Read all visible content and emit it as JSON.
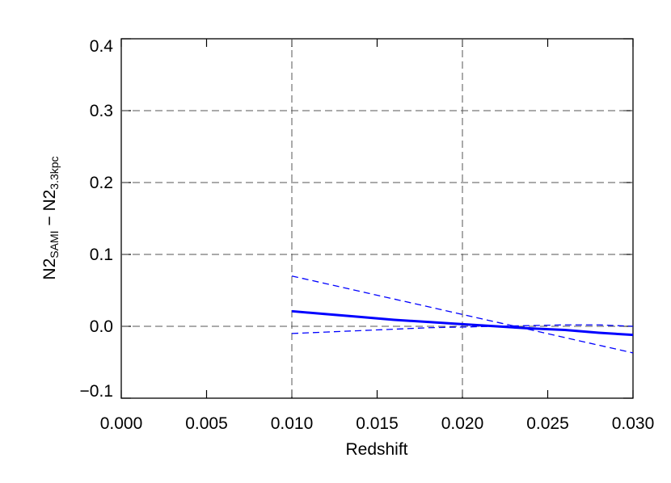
{
  "chart_data": {
    "type": "line",
    "x_label": "Redshift",
    "y_label": [
      {
        "text": "N2"
      },
      {
        "text": "SAMI",
        "sub": true
      },
      {
        "text": " − "
      },
      {
        "text": "N2"
      },
      {
        "text": "3.3kpc",
        "sub": true
      }
    ],
    "x": [
      0.01,
      0.012,
      0.014,
      0.016,
      0.018,
      0.02,
      0.022,
      0.024,
      0.026,
      0.028,
      0.03
    ],
    "series": [
      {
        "color": "#0000ff",
        "dash": false,
        "width": 3,
        "values": [
          0.021,
          0.017,
          0.013,
          0.009,
          0.006,
          0.003,
          0.0,
          -0.003,
          -0.005,
          -0.009,
          -0.012
        ]
      },
      {
        "color": "#0000ff",
        "dash": true,
        "width": 1.3,
        "values": [
          0.07,
          0.0593,
          0.0486,
          0.0379,
          0.0272,
          0.0165,
          0.0058,
          -0.0049,
          -0.0156,
          -0.0263,
          -0.037
        ]
      },
      {
        "color": "#0000ff",
        "dash": true,
        "width": 1.3,
        "values": [
          -0.01,
          -0.008,
          -0.006,
          -0.004,
          -0.002,
          -0.001,
          0.0,
          0.001,
          0.002,
          0.002,
          0.0
        ]
      }
    ],
    "xlim": [
      0,
      0.03
    ],
    "ylim": [
      -0.1,
      0.4
    ],
    "xticks": [
      {
        "value": 0,
        "label": "0.000"
      },
      {
        "value": 0.005,
        "label": "0.005"
      },
      {
        "value": 0.01,
        "label": "0.010"
      },
      {
        "value": 0.015,
        "label": "0.015"
      },
      {
        "value": 0.02,
        "label": "0.020"
      },
      {
        "value": 0.025,
        "label": "0.025"
      },
      {
        "value": 0.03,
        "label": "0.030"
      }
    ],
    "yticks": [
      {
        "value": -0.1,
        "label": "−0.1"
      },
      {
        "value": 0,
        "label": "0.0"
      },
      0.1,
      0.2,
      0.3,
      0.4
    ],
    "vlines": [
      0.01,
      0.02
    ],
    "hlines": [
      0,
      0.1,
      0.2,
      0.3
    ]
  }
}
